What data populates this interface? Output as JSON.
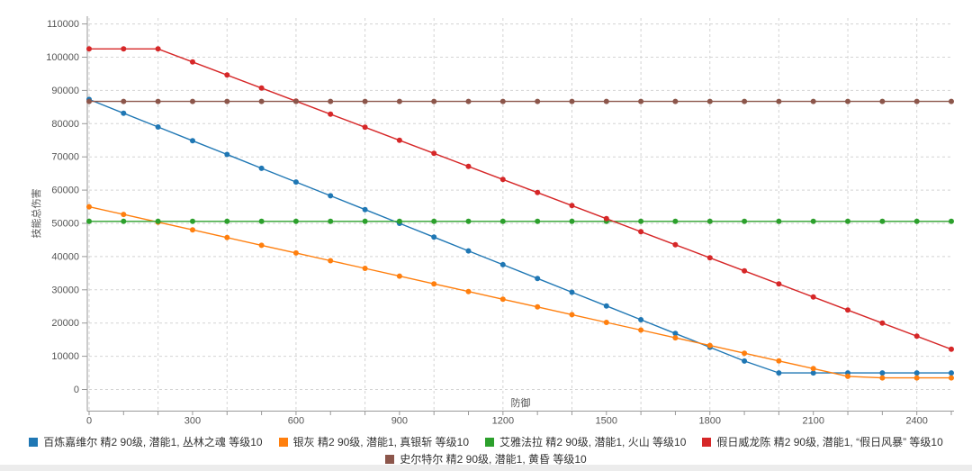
{
  "window": {
    "background": "#ffffff",
    "bottom_strip_color": "#ececec"
  },
  "styles": {
    "axis_color": "#999999",
    "grid_color": "#d4d4d4",
    "tick_text_color": "#555555",
    "legend_text_color": "#333333"
  },
  "chart_data": {
    "type": "line",
    "title": "",
    "xlabel": "防御",
    "ylabel": "技能总伤害",
    "x": [
      0,
      100,
      200,
      300,
      400,
      500,
      600,
      700,
      800,
      900,
      1000,
      1100,
      1200,
      1300,
      1400,
      1500,
      1600,
      1700,
      1800,
      1900,
      2000,
      2100,
      2200,
      2300,
      2400,
      2500
    ],
    "x_axis_tick_every": 100,
    "x_axis_labels": [
      "0",
      "300",
      "600",
      "900",
      "1200",
      "1500",
      "1800",
      "2100",
      "2400"
    ],
    "x_label_values": [
      0,
      300,
      600,
      900,
      1200,
      1500,
      1800,
      2100,
      2400
    ],
    "x_gridline_every": 200,
    "xlim": [
      0,
      2500
    ],
    "ylim": [
      0,
      110000
    ],
    "y_ticks": [
      0,
      10000,
      20000,
      30000,
      40000,
      50000,
      60000,
      70000,
      80000,
      90000,
      100000,
      110000
    ],
    "y_tick_labels": [
      "0",
      "10000",
      "20000",
      "30000",
      "40000",
      "50000",
      "60000",
      "70000",
      "80000",
      "90000",
      "100000",
      "110000"
    ],
    "grid": "dashed",
    "marker": "circle",
    "legend_marker": "square",
    "legend_position": "bottom-center",
    "series": [
      {
        "name": "百炼嘉维尔 精2 90级, 潜能1, 丛林之魂 等级10",
        "color": "#1f77b4",
        "values": [
          87300,
          83150,
          79000,
          74860,
          70720,
          66570,
          62430,
          58280,
          54140,
          50000,
          45860,
          41710,
          37570,
          33420,
          29280,
          25140,
          20990,
          16850,
          12700,
          8560,
          5000,
          5000,
          5000,
          5000,
          5000,
          5000
        ]
      },
      {
        "name": "银灰 精2 90级, 潜能1, 真银斩 等级10",
        "color": "#ff7f0e",
        "values": [
          55000,
          52680,
          50360,
          48040,
          45720,
          43400,
          41080,
          38760,
          36440,
          34120,
          31800,
          29480,
          27160,
          24840,
          22520,
          20200,
          17880,
          15560,
          13240,
          10920,
          8600,
          6280,
          3960,
          3500,
          3500,
          3500
        ]
      },
      {
        "name": "艾雅法拉 精2 90级, 潜能1, 火山 等级10",
        "color": "#2ca02c",
        "values": [
          50600,
          50600,
          50600,
          50600,
          50600,
          50600,
          50600,
          50600,
          50600,
          50600,
          50600,
          50600,
          50600,
          50600,
          50600,
          50600,
          50600,
          50600,
          50600,
          50600,
          50600,
          50600,
          50600,
          50600,
          50600,
          50600
        ]
      },
      {
        "name": "假日威龙陈 精2 90级, 潜能1, “假日风暴” 等级10",
        "color": "#d62728",
        "values": [
          102500,
          102500,
          102500,
          98570,
          94640,
          90710,
          86780,
          82850,
          78920,
          74990,
          71060,
          67130,
          63200,
          59270,
          55340,
          51410,
          47480,
          43550,
          39620,
          35690,
          31760,
          27830,
          23900,
          19970,
          16040,
          12110
        ]
      },
      {
        "name": "史尔特尔 精2 90级, 潜能1, 黄昏 等级10",
        "color": "#8c564b",
        "values": [
          86700,
          86700,
          86700,
          86700,
          86700,
          86700,
          86700,
          86700,
          86700,
          86700,
          86700,
          86700,
          86700,
          86700,
          86700,
          86700,
          86700,
          86700,
          86700,
          86700,
          86700,
          86700,
          86700,
          86700,
          86700,
          86700
        ]
      }
    ]
  }
}
